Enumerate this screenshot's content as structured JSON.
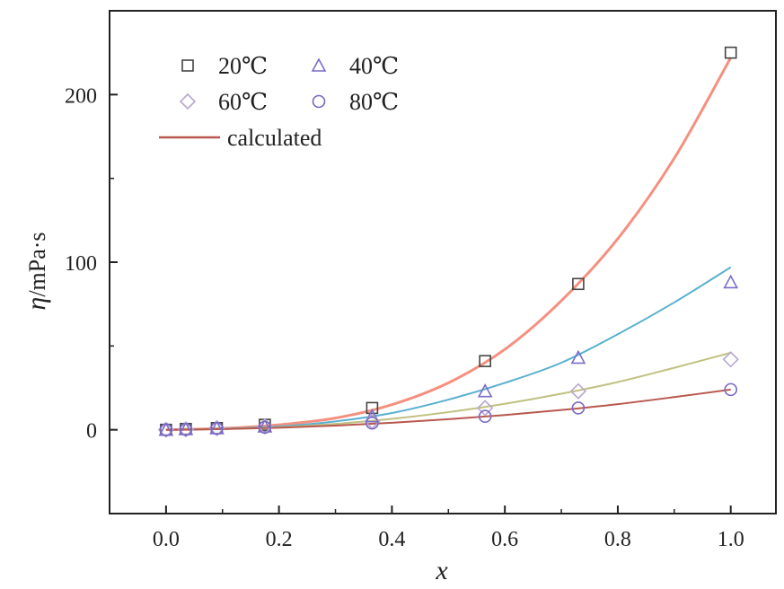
{
  "chart_data": {
    "type": "scatter",
    "title": "",
    "xlabel": "x",
    "ylabel_symbol": "η",
    "ylabel_unit": "/mPa·s",
    "xlim": [
      -0.1,
      1.08
    ],
    "ylim": [
      -50,
      250
    ],
    "x_ticks": [
      0.0,
      0.2,
      0.4,
      0.6,
      0.8,
      1.0
    ],
    "x_tick_labels": [
      "0.0",
      "0.2",
      "0.4",
      "0.6",
      "0.8",
      "1.0"
    ],
    "y_ticks": [
      0,
      100,
      200
    ],
    "y_tick_labels": [
      "0",
      "100",
      "200"
    ],
    "legend": {
      "position": "top-left",
      "entries": [
        {
          "label": "20℃",
          "marker": "square",
          "color": "#444444"
        },
        {
          "label": "40℃",
          "marker": "triangle",
          "color": "#7a6cc8"
        },
        {
          "label": "60℃",
          "marker": "diamond",
          "color": "#b8a6d0"
        },
        {
          "label": "80℃",
          "marker": "circle",
          "color": "#7a68c0"
        },
        {
          "label": "calculated",
          "marker": "line",
          "color": "#b8584e"
        }
      ]
    },
    "series": [
      {
        "name": "20℃",
        "marker": "square",
        "color": "#444444",
        "fit_color": "#f59080",
        "x": [
          0.0,
          0.035,
          0.09,
          0.175,
          0.365,
          0.565,
          0.73,
          1.0
        ],
        "y": [
          0,
          0.5,
          1,
          3,
          13,
          41,
          87,
          225
        ],
        "fit": [
          [
            0,
            0
          ],
          [
            0.1,
            0.8
          ],
          [
            0.2,
            3
          ],
          [
            0.3,
            7
          ],
          [
            0.4,
            15
          ],
          [
            0.5,
            28
          ],
          [
            0.6,
            48
          ],
          [
            0.7,
            77
          ],
          [
            0.8,
            114
          ],
          [
            0.9,
            162
          ],
          [
            1.0,
            222
          ]
        ]
      },
      {
        "name": "40℃",
        "marker": "triangle",
        "color": "#7a6cc8",
        "fit_color": "#5ab0d0",
        "x": [
          0.0,
          0.035,
          0.09,
          0.175,
          0.365,
          0.565,
          0.73,
          1.0
        ],
        "y": [
          0,
          0.4,
          1,
          2,
          8,
          23,
          43,
          88
        ],
        "fit": [
          [
            0,
            0
          ],
          [
            0.1,
            0.6
          ],
          [
            0.2,
            2
          ],
          [
            0.3,
            5
          ],
          [
            0.4,
            10
          ],
          [
            0.5,
            18
          ],
          [
            0.6,
            28
          ],
          [
            0.7,
            40
          ],
          [
            0.8,
            57
          ],
          [
            0.9,
            76
          ],
          [
            1.0,
            97
          ]
        ]
      },
      {
        "name": "60℃",
        "marker": "diamond",
        "color": "#b8a6d0",
        "fit_color": "#c0c080",
        "x": [
          0.0,
          0.035,
          0.09,
          0.175,
          0.365,
          0.565,
          0.73,
          1.0
        ],
        "y": [
          0,
          0.3,
          1,
          2,
          5,
          13,
          23,
          42
        ],
        "fit": [
          [
            0,
            0
          ],
          [
            0.1,
            0.5
          ],
          [
            0.2,
            1.5
          ],
          [
            0.3,
            3.5
          ],
          [
            0.4,
            6.5
          ],
          [
            0.5,
            10.5
          ],
          [
            0.6,
            15.5
          ],
          [
            0.7,
            21.5
          ],
          [
            0.8,
            28.5
          ],
          [
            0.9,
            37
          ],
          [
            1.0,
            46
          ]
        ]
      },
      {
        "name": "80℃",
        "marker": "circle",
        "color": "#7a68c0",
        "fit_color": "#b8584e",
        "x": [
          0.0,
          0.035,
          0.09,
          0.175,
          0.365,
          0.565,
          0.73,
          1.0
        ],
        "y": [
          0,
          0.2,
          0.8,
          1.5,
          4,
          8,
          13,
          24
        ],
        "fit": [
          [
            0,
            0
          ],
          [
            0.1,
            0.4
          ],
          [
            0.2,
            1.2
          ],
          [
            0.3,
            2.5
          ],
          [
            0.4,
            4.2
          ],
          [
            0.5,
            6.3
          ],
          [
            0.6,
            8.8
          ],
          [
            0.7,
            11.8
          ],
          [
            0.8,
            15.3
          ],
          [
            0.9,
            19.5
          ],
          [
            1.0,
            24
          ]
        ]
      }
    ]
  }
}
